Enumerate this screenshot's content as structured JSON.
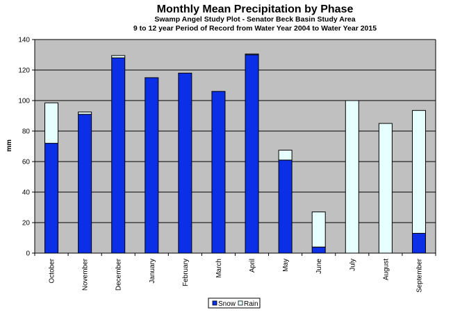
{
  "chart_data": {
    "type": "bar",
    "stacked": true,
    "title": "Monthly Mean Precipitation by Phase",
    "subtitle": [
      "Swamp Angel Study Plot - Senator Beck Basin Study Area",
      "9 to 12 year Period of Record  from Water Year 2004 to Water Year 2015"
    ],
    "xlabel": "",
    "ylabel": "mm",
    "ylim": [
      0,
      140
    ],
    "yticks": [
      0,
      20,
      40,
      60,
      80,
      100,
      120,
      140
    ],
    "grid": true,
    "legend_position": "bottom-center",
    "categories": [
      "October",
      "November",
      "December",
      "January",
      "February",
      "March",
      "April",
      "May",
      "June",
      "July",
      "August",
      "September"
    ],
    "series": [
      {
        "name": "Snow",
        "color": "#0a2fe6",
        "values": [
          72,
          91,
          128,
          115,
          118,
          106,
          130,
          61,
          4,
          0,
          0,
          13
        ]
      },
      {
        "name": "Rain",
        "color": "#e6ffff",
        "values": [
          26.5,
          1.5,
          1.5,
          0,
          0,
          0,
          0.5,
          6.5,
          23,
          100,
          85,
          80.5
        ]
      }
    ],
    "colors": {
      "plot_bg": "#c0c0c0",
      "bar_outline": "#000000"
    }
  }
}
